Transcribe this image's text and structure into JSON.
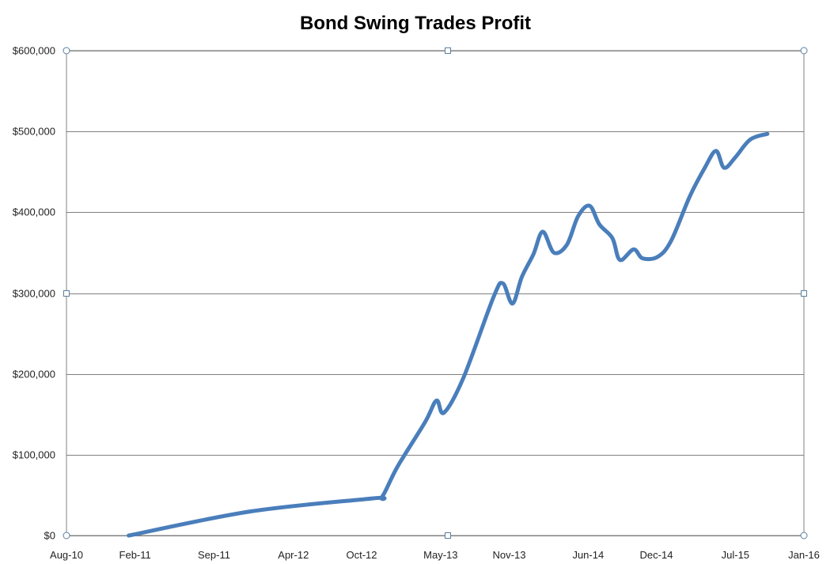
{
  "chart_data": {
    "type": "line",
    "title": "Bond Swing Trades Profit",
    "xlabel": "",
    "ylabel": "",
    "x_range": [
      "2010-08-01",
      "2016-01-01"
    ],
    "ylim": [
      0,
      600000
    ],
    "x_ticks": [
      {
        "date": "2010-08-01",
        "label": "Aug-10"
      },
      {
        "date": "2011-02-01",
        "label": "Feb-11"
      },
      {
        "date": "2011-09-01",
        "label": "Sep-11"
      },
      {
        "date": "2012-04-01",
        "label": "Apr-12"
      },
      {
        "date": "2012-10-01",
        "label": "Oct-12"
      },
      {
        "date": "2013-05-01",
        "label": "May-13"
      },
      {
        "date": "2013-11-01",
        "label": "Nov-13"
      },
      {
        "date": "2014-06-01",
        "label": "Jun-14"
      },
      {
        "date": "2014-12-01",
        "label": "Dec-14"
      },
      {
        "date": "2015-07-01",
        "label": "Jul-15"
      },
      {
        "date": "2016-01-01",
        "label": "Jan-16"
      }
    ],
    "y_ticks": [
      {
        "value": 0,
        "label": "$0"
      },
      {
        "value": 100000,
        "label": "$100,000"
      },
      {
        "value": 200000,
        "label": "$200,000"
      },
      {
        "value": 300000,
        "label": "$300,000"
      },
      {
        "value": 400000,
        "label": "$400,000"
      },
      {
        "value": 500000,
        "label": "$500,000"
      },
      {
        "value": 600000,
        "label": "$600,000"
      }
    ],
    "grid": true,
    "legend": "none",
    "series": [
      {
        "color": "#4a7ebb",
        "points": [
          {
            "x": "2011-01-15",
            "y": 0
          },
          {
            "x": "2011-12-10",
            "y": 30000
          },
          {
            "x": "2012-11-01",
            "y": 46000
          },
          {
            "x": "2012-11-25",
            "y": 48000
          },
          {
            "x": "2013-01-05",
            "y": 85000
          },
          {
            "x": "2013-03-20",
            "y": 140000
          },
          {
            "x": "2013-04-20",
            "y": 167000
          },
          {
            "x": "2013-05-10",
            "y": 152000
          },
          {
            "x": "2013-07-01",
            "y": 195000
          },
          {
            "x": "2013-09-20",
            "y": 295000
          },
          {
            "x": "2013-10-15",
            "y": 312000
          },
          {
            "x": "2013-11-10",
            "y": 287000
          },
          {
            "x": "2013-12-05",
            "y": 320000
          },
          {
            "x": "2014-01-05",
            "y": 348000
          },
          {
            "x": "2014-01-30",
            "y": 376000
          },
          {
            "x": "2014-03-01",
            "y": 350000
          },
          {
            "x": "2014-04-05",
            "y": 360000
          },
          {
            "x": "2014-05-05",
            "y": 395000
          },
          {
            "x": "2014-06-05",
            "y": 408000
          },
          {
            "x": "2014-07-01",
            "y": 385000
          },
          {
            "x": "2014-08-05",
            "y": 368000
          },
          {
            "x": "2014-08-25",
            "y": 341000
          },
          {
            "x": "2014-10-01",
            "y": 354000
          },
          {
            "x": "2014-10-25",
            "y": 343000
          },
          {
            "x": "2014-12-05",
            "y": 345000
          },
          {
            "x": "2015-01-10",
            "y": 365000
          },
          {
            "x": "2015-03-01",
            "y": 420000
          },
          {
            "x": "2015-04-10",
            "y": 455000
          },
          {
            "x": "2015-05-10",
            "y": 476000
          },
          {
            "x": "2015-06-01",
            "y": 455000
          },
          {
            "x": "2015-07-01",
            "y": 468000
          },
          {
            "x": "2015-08-10",
            "y": 490000
          },
          {
            "x": "2015-09-25",
            "y": 497000
          }
        ]
      }
    ]
  }
}
